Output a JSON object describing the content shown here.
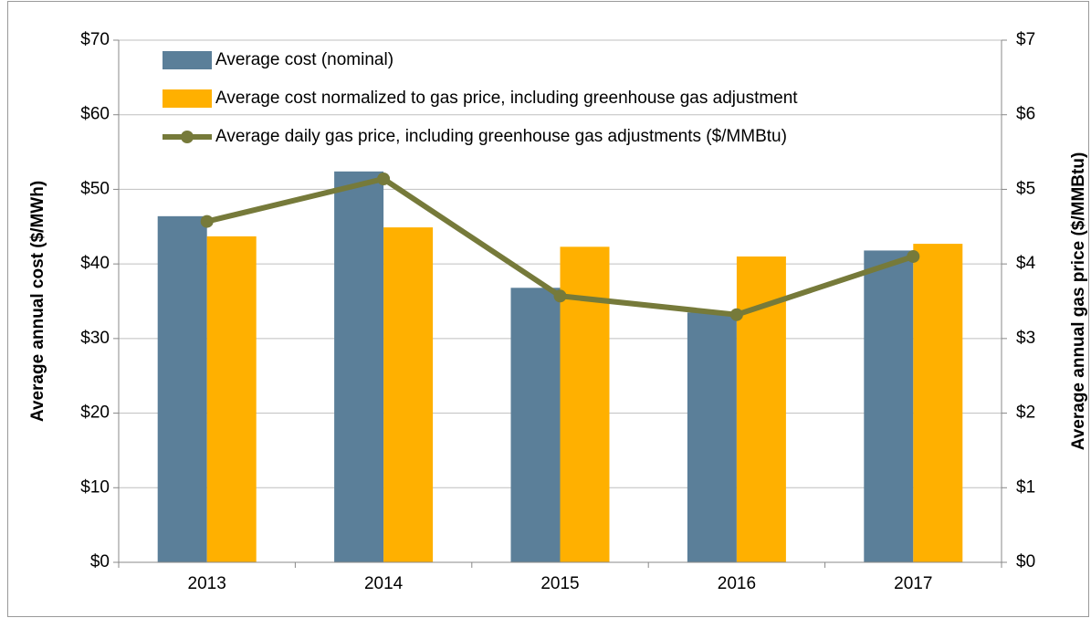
{
  "chart_data": {
    "type": "bar",
    "categories": [
      "2013",
      "2014",
      "2015",
      "2016",
      "2017"
    ],
    "series": [
      {
        "name": "Average cost (nominal)",
        "color": "#5b7f99",
        "values": [
          46.4,
          52.4,
          36.8,
          33.5,
          41.8
        ]
      },
      {
        "name": "Average cost normalized to gas price, including greenhouse gas adjustment",
        "color": "#ffb000",
        "values": [
          43.7,
          44.9,
          42.3,
          41.0,
          42.7
        ]
      },
      {
        "name": "Average daily gas price, including greenhouse gas adjustments ($/MMBtu)",
        "color": "#767a3a",
        "values": [
          4.57,
          5.14,
          3.57,
          3.32,
          4.1
        ],
        "axis": "y2",
        "type": "line"
      }
    ],
    "ylabel": "Average  annual cost ($/MWh)",
    "y2label": "Average  annual gas price ($/MMBtu)",
    "ylim": [
      0,
      70
    ],
    "yticks": [
      {
        "value": 0,
        "label": "$0"
      },
      {
        "value": 10,
        "label": "$10"
      },
      {
        "value": 20,
        "label": "$20"
      },
      {
        "value": 30,
        "label": "$30"
      },
      {
        "value": 40,
        "label": "$40"
      },
      {
        "value": 50,
        "label": "$50"
      },
      {
        "value": 60,
        "label": "$60"
      },
      {
        "value": 70,
        "label": "$70"
      }
    ],
    "y2lim": [
      0,
      7
    ],
    "y2ticks": [
      {
        "value": 0,
        "label": "$0"
      },
      {
        "value": 1,
        "label": "$1"
      },
      {
        "value": 2,
        "label": "$2"
      },
      {
        "value": 3,
        "label": "$3"
      },
      {
        "value": 4,
        "label": "$4"
      },
      {
        "value": 5,
        "label": "$5"
      },
      {
        "value": 6,
        "label": "$6"
      },
      {
        "value": 7,
        "label": "$7"
      }
    ],
    "grid": true,
    "legend": "upper left"
  }
}
